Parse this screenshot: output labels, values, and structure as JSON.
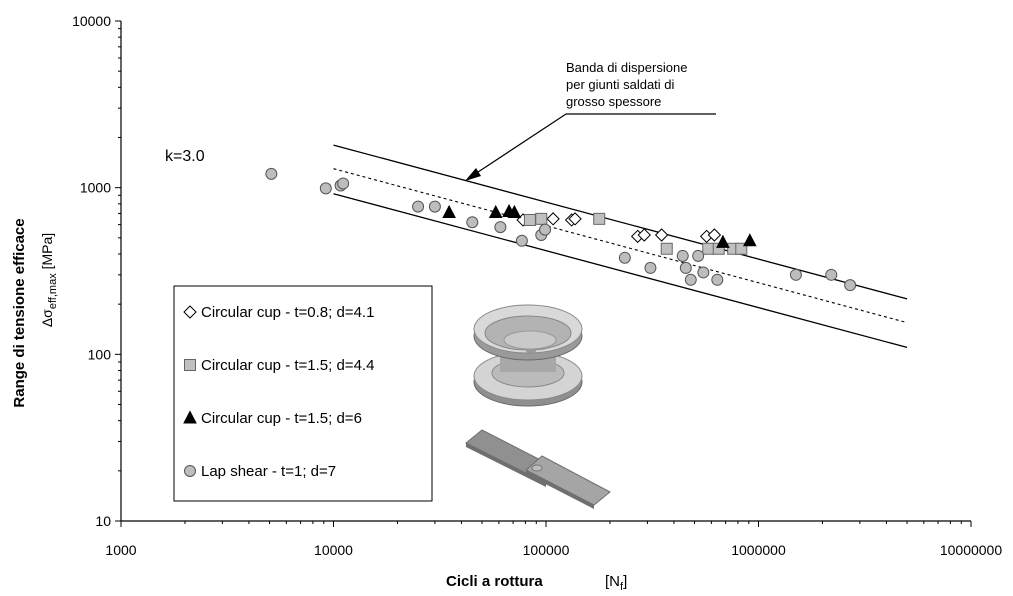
{
  "chart_data": {
    "type": "scatter",
    "title": "",
    "xlabel": "Cicli a rottura",
    "xlabel_unit": "[N",
    "xlabel_unit_sub": "f",
    "xlabel_unit_close": "]",
    "ylabel": "Range di tensione efficace",
    "ylabel_sub_symbol": "Δσ",
    "ylabel_sub_subscript": "eff,max",
    "ylabel_sub_unit": " [MPa]",
    "xscale": "log",
    "yscale": "log",
    "xlim": [
      1000,
      10000000
    ],
    "ylim": [
      10,
      10000
    ],
    "xticks": [
      "1000",
      "10000",
      "100000",
      "1000000",
      "10000000"
    ],
    "yticks": [
      "10",
      "100",
      "1000",
      "10000"
    ],
    "grid": false,
    "legend_position": "bottom-left",
    "series": [
      {
        "name": "Circular cup - t=0.8; d=4.1",
        "marker": "diamond",
        "color": "#ffffff",
        "points": [
          [
            78000,
            640
          ],
          [
            108000,
            650
          ],
          [
            132000,
            640
          ],
          [
            137000,
            650
          ],
          [
            270000,
            510
          ],
          [
            290000,
            520
          ],
          [
            350000,
            520
          ],
          [
            570000,
            510
          ],
          [
            620000,
            520
          ]
        ]
      },
      {
        "name": "Circular cup - t=1.5; d=4.4",
        "marker": "square",
        "color": "#c0c0c0",
        "points": [
          [
            84000,
            640
          ],
          [
            95000,
            650
          ],
          [
            178000,
            650
          ],
          [
            370000,
            430
          ],
          [
            580000,
            430
          ],
          [
            650000,
            430
          ],
          [
            760000,
            430
          ],
          [
            830000,
            430
          ]
        ]
      },
      {
        "name": "Circular cup - t=1.5; d=6",
        "marker": "triangle",
        "color": "#000000",
        "points": [
          [
            35000,
            710
          ],
          [
            58000,
            710
          ],
          [
            67000,
            720
          ],
          [
            71000,
            710
          ],
          [
            680000,
            470
          ],
          [
            910000,
            480
          ]
        ]
      },
      {
        "name": "Lap shear - t=1; d=7",
        "marker": "circle",
        "color": "#bdbdbd",
        "points": [
          [
            5100,
            1210
          ],
          [
            9200,
            990
          ],
          [
            10800,
            1030
          ],
          [
            11100,
            1060
          ],
          [
            25000,
            770
          ],
          [
            30000,
            770
          ],
          [
            45000,
            620
          ],
          [
            61000,
            580
          ],
          [
            77000,
            480
          ],
          [
            95000,
            520
          ],
          [
            99000,
            560
          ],
          [
            235000,
            380
          ],
          [
            310000,
            330
          ],
          [
            440000,
            390
          ],
          [
            455000,
            330
          ],
          [
            480000,
            280
          ],
          [
            520000,
            390
          ],
          [
            550000,
            310
          ],
          [
            640000,
            280
          ],
          [
            1500000,
            300
          ],
          [
            2200000,
            300
          ],
          [
            2700000,
            260
          ]
        ]
      }
    ],
    "lines": [
      {
        "role": "upper",
        "style": "solid",
        "points": [
          [
            10000,
            1800
          ],
          [
            5000000,
            215
          ]
        ]
      },
      {
        "role": "mean",
        "style": "dotted",
        "points": [
          [
            10000,
            1300
          ],
          [
            5000000,
            155
          ]
        ]
      },
      {
        "role": "lower",
        "style": "solid",
        "points": [
          [
            10000,
            920
          ],
          [
            5000000,
            110
          ]
        ]
      }
    ],
    "annotations": {
      "band_label": [
        "Banda di dispersione",
        "per giunti saldati di",
        "grosso spessore"
      ],
      "slope_label": "k=3.0"
    }
  }
}
